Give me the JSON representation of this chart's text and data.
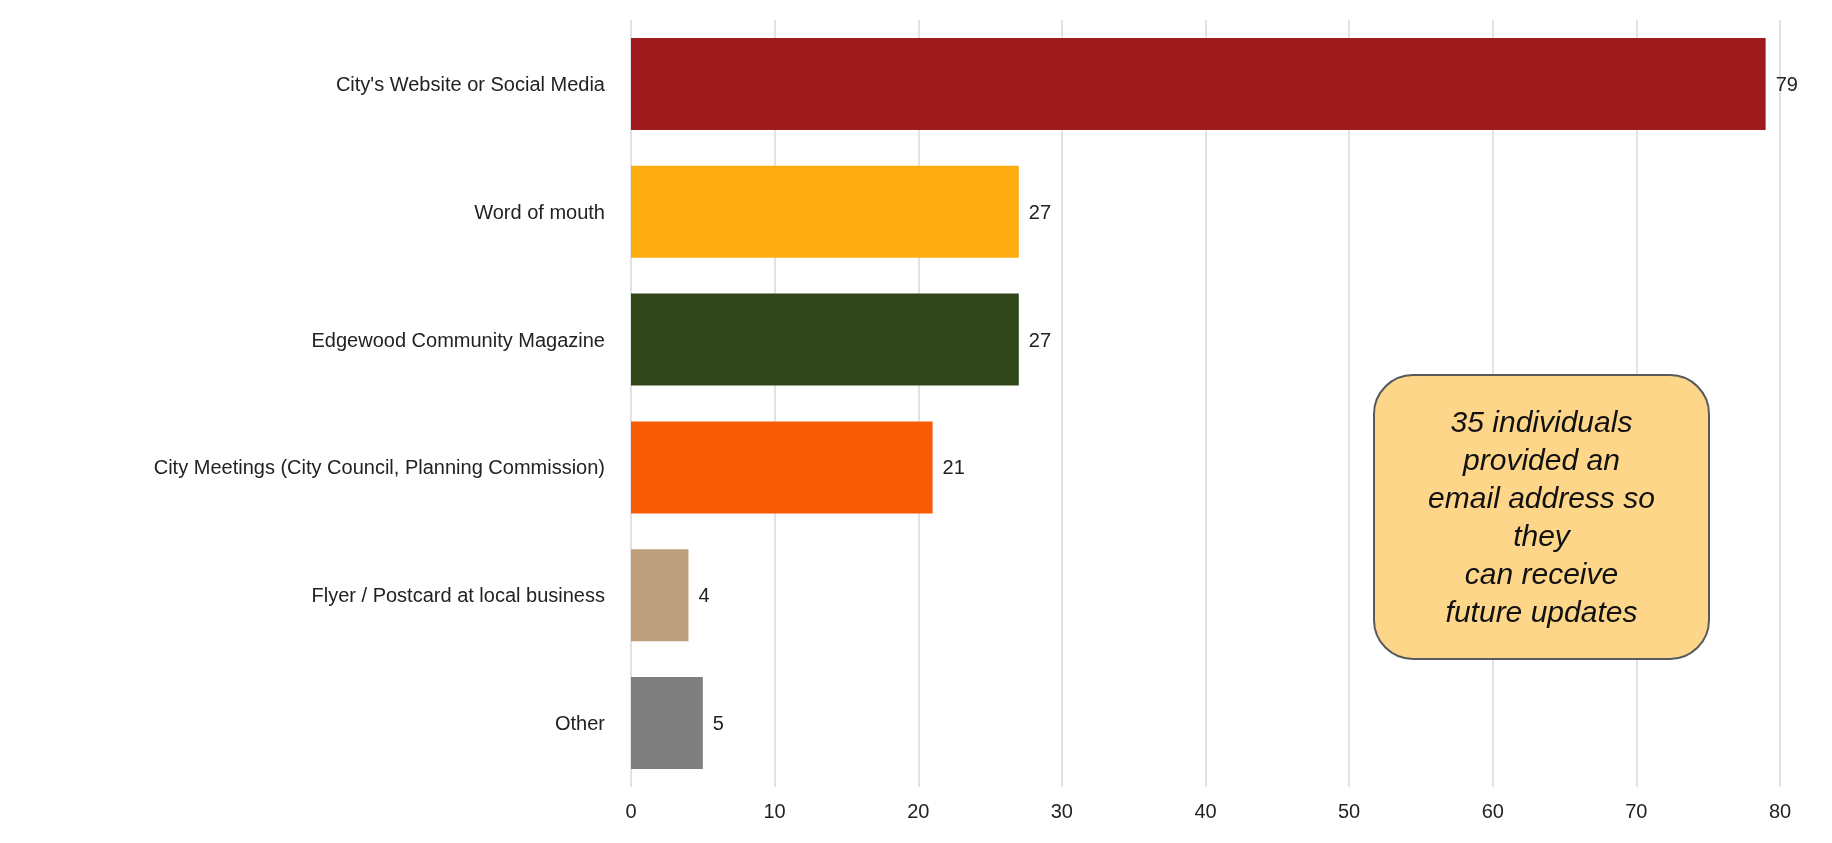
{
  "chart_data": {
    "type": "bar",
    "orientation": "horizontal",
    "categories": [
      "City's Website or Social Media",
      "Word of mouth",
      "Edgewood Community Magazine",
      "City Meetings (City Council, Planning Commission)",
      "Flyer / Postcard at local business",
      "Other"
    ],
    "values": [
      79,
      27,
      27,
      21,
      4,
      5
    ],
    "colors": [
      "#9e1a1c",
      "#fdac10",
      "#31451b",
      "#f75b06",
      "#bd9f7e",
      "#7f7f7f"
    ],
    "xlim": [
      0,
      80
    ],
    "xticks": [
      0,
      10,
      20,
      30,
      40,
      50,
      60,
      70,
      80
    ],
    "grid": "x",
    "data_labels": true,
    "annotations": [
      "35 individuals\nprovided an\nemail address so\nthey\n can receive\nfuture updates"
    ]
  }
}
